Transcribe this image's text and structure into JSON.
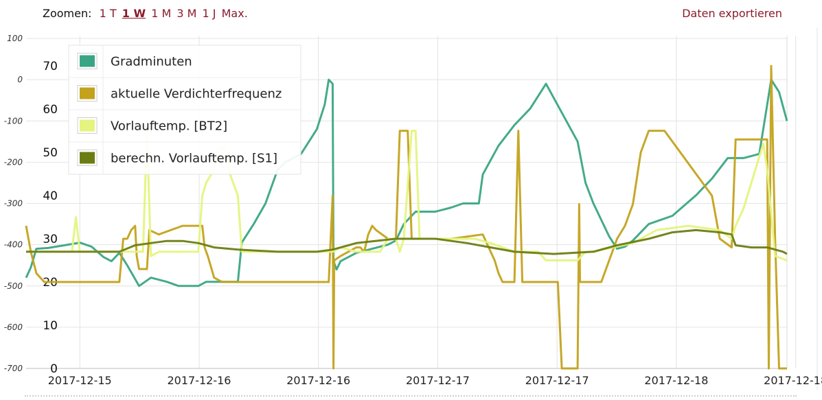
{
  "toolbar": {
    "zoom_label": "Zoomen:",
    "zoom_options": [
      "1 T",
      "1 W",
      "1 M",
      "3 M",
      "1 J",
      "Max."
    ],
    "zoom_active": "1 W",
    "export_label": "Daten exportieren",
    "link_color": "#8b1a2b"
  },
  "chart_data": {
    "type": "line",
    "x": [
      0,
      1,
      2,
      3,
      4,
      5,
      6
    ],
    "x_tick_labels": [
      "2017-12-15",
      "2017-12-16",
      "2017-12-16",
      "2017-12-17",
      "2017-12-17",
      "2017-12-18",
      "2017-12-18"
    ],
    "y_left": {
      "ticks": [
        "100",
        "0",
        "-100",
        "-200",
        "-300",
        "-400",
        "-500",
        "-600",
        "-700"
      ],
      "range": [
        -700,
        100
      ]
    },
    "y_right": {
      "ticks": [
        "70",
        "60",
        "50",
        "40",
        "30",
        "20",
        "10",
        "0"
      ],
      "range": [
        0,
        77
      ]
    },
    "grid": true,
    "legend_position": "top-left",
    "series": [
      {
        "name": "Gradminuten",
        "axis": "left",
        "color": "#3aa584",
        "points": [
          [
            -0.18,
            -480
          ],
          [
            -0.12,
            -455
          ],
          [
            -0.05,
            -410
          ],
          [
            0.1,
            -408
          ],
          [
            0.35,
            -400
          ],
          [
            0.5,
            -395
          ],
          [
            0.65,
            -405
          ],
          [
            0.8,
            -430
          ],
          [
            0.9,
            -440
          ],
          [
            1.0,
            -420
          ],
          [
            1.1,
            -450
          ],
          [
            1.25,
            -500
          ],
          [
            1.4,
            -480
          ],
          [
            1.6,
            -490
          ],
          [
            1.75,
            -500
          ],
          [
            2.0,
            -500
          ],
          [
            2.1,
            -490
          ],
          [
            2.5,
            -490
          ],
          [
            2.55,
            -395
          ],
          [
            2.7,
            -350
          ],
          [
            2.85,
            -300
          ],
          [
            3.0,
            -220
          ],
          [
            3.1,
            -200
          ],
          [
            3.3,
            -180
          ],
          [
            3.5,
            -120
          ],
          [
            3.6,
            -60
          ],
          [
            3.65,
            0
          ],
          [
            3.7,
            -10
          ],
          [
            3.71,
            -440
          ],
          [
            3.75,
            -460
          ],
          [
            3.8,
            -440
          ],
          [
            4.0,
            -420
          ],
          [
            4.2,
            -410
          ],
          [
            4.4,
            -400
          ],
          [
            4.5,
            -390
          ],
          [
            4.6,
            -350
          ],
          [
            4.75,
            -320
          ],
          [
            5.0,
            -320
          ],
          [
            5.2,
            -310
          ],
          [
            5.35,
            -300
          ],
          [
            5.55,
            -300
          ],
          [
            5.6,
            -230
          ],
          [
            5.8,
            -160
          ],
          [
            6.0,
            -110
          ],
          [
            6.2,
            -70
          ],
          [
            6.4,
            -10
          ],
          [
            6.6,
            -80
          ],
          [
            6.8,
            -150
          ],
          [
            6.9,
            -250
          ],
          [
            7.0,
            -300
          ],
          [
            7.2,
            -380
          ],
          [
            7.3,
            -410
          ],
          [
            7.4,
            -405
          ],
          [
            7.5,
            -390
          ],
          [
            7.6,
            -370
          ],
          [
            7.7,
            -350
          ],
          [
            8.0,
            -330
          ],
          [
            8.3,
            -280
          ],
          [
            8.5,
            -240
          ],
          [
            8.7,
            -190
          ],
          [
            8.9,
            -190
          ],
          [
            9.1,
            -180
          ],
          [
            9.25,
            0
          ],
          [
            9.35,
            -30
          ],
          [
            9.45,
            -100
          ]
        ]
      },
      {
        "name": "aktuelle Verdichterfrequenz",
        "axis": "right",
        "color": "#c3a21c",
        "points": [
          [
            -0.18,
            33
          ],
          [
            -0.12,
            27
          ],
          [
            -0.05,
            22
          ],
          [
            0.05,
            20
          ],
          [
            0.5,
            20
          ],
          [
            1.0,
            20
          ],
          [
            1.05,
            30
          ],
          [
            1.1,
            30
          ],
          [
            1.15,
            32
          ],
          [
            1.2,
            33
          ],
          [
            1.22,
            26
          ],
          [
            1.25,
            23
          ],
          [
            1.35,
            23
          ],
          [
            1.38,
            32
          ],
          [
            1.5,
            31
          ],
          [
            1.8,
            33
          ],
          [
            2.05,
            33
          ],
          [
            2.08,
            28
          ],
          [
            2.12,
            26
          ],
          [
            2.2,
            21
          ],
          [
            2.3,
            20
          ],
          [
            2.5,
            20
          ],
          [
            3.0,
            20
          ],
          [
            3.2,
            20
          ],
          [
            3.4,
            20
          ],
          [
            3.6,
            20
          ],
          [
            3.65,
            20
          ],
          [
            3.7,
            40
          ],
          [
            3.71,
            0
          ],
          [
            3.72,
            25
          ],
          [
            3.8,
            26
          ],
          [
            4.0,
            28
          ],
          [
            4.05,
            28
          ],
          [
            4.1,
            27
          ],
          [
            4.15,
            31
          ],
          [
            4.2,
            33
          ],
          [
            4.25,
            32
          ],
          [
            4.4,
            30
          ],
          [
            4.5,
            30
          ],
          [
            4.55,
            55
          ],
          [
            4.65,
            55
          ],
          [
            4.7,
            30
          ],
          [
            4.8,
            30
          ],
          [
            5.0,
            30
          ],
          [
            5.2,
            30
          ],
          [
            5.6,
            31
          ],
          [
            5.7,
            27
          ],
          [
            5.75,
            25
          ],
          [
            5.8,
            22
          ],
          [
            5.85,
            20
          ],
          [
            5.9,
            20
          ],
          [
            6.0,
            20
          ],
          [
            6.05,
            55
          ],
          [
            6.1,
            20
          ],
          [
            6.2,
            20
          ],
          [
            6.3,
            20
          ],
          [
            6.55,
            20
          ],
          [
            6.6,
            0
          ],
          [
            6.8,
            0
          ],
          [
            6.82,
            38
          ],
          [
            6.83,
            20
          ],
          [
            7.0,
            20
          ],
          [
            7.1,
            20
          ],
          [
            7.2,
            25
          ],
          [
            7.3,
            30
          ],
          [
            7.4,
            33
          ],
          [
            7.5,
            38
          ],
          [
            7.6,
            50
          ],
          [
            7.7,
            55
          ],
          [
            7.9,
            55
          ],
          [
            8.1,
            50
          ],
          [
            8.3,
            45
          ],
          [
            8.5,
            40
          ],
          [
            8.6,
            30
          ],
          [
            8.75,
            28
          ],
          [
            8.8,
            53
          ],
          [
            9.0,
            53
          ],
          [
            9.2,
            53
          ],
          [
            9.22,
            0
          ],
          [
            9.25,
            70
          ],
          [
            9.3,
            30
          ],
          [
            9.35,
            0
          ],
          [
            9.45,
            0
          ]
        ]
      },
      {
        "name": "Vorlauftemp. [BT2]",
        "axis": "right",
        "color": "#e4f47e",
        "points": [
          [
            -0.18,
            27
          ],
          [
            0.3,
            27
          ],
          [
            0.4,
            27
          ],
          [
            0.45,
            35
          ],
          [
            0.5,
            27
          ],
          [
            1.0,
            27
          ],
          [
            1.3,
            27
          ],
          [
            1.35,
            55
          ],
          [
            1.4,
            26
          ],
          [
            1.5,
            27
          ],
          [
            1.8,
            27
          ],
          [
            2.0,
            27
          ],
          [
            2.05,
            40
          ],
          [
            2.1,
            43
          ],
          [
            2.2,
            46
          ],
          [
            2.25,
            51
          ],
          [
            2.35,
            51
          ],
          [
            2.4,
            45
          ],
          [
            2.5,
            40
          ],
          [
            2.55,
            27
          ],
          [
            3.0,
            27
          ],
          [
            3.5,
            27
          ],
          [
            3.7,
            27
          ],
          [
            3.8,
            28
          ],
          [
            4.0,
            27
          ],
          [
            4.3,
            27
          ],
          [
            4.4,
            30
          ],
          [
            4.5,
            30
          ],
          [
            4.55,
            27
          ],
          [
            4.6,
            30
          ],
          [
            4.7,
            55
          ],
          [
            4.75,
            55
          ],
          [
            4.8,
            30
          ],
          [
            5.0,
            30
          ],
          [
            5.5,
            30
          ],
          [
            5.7,
            29
          ],
          [
            6.0,
            27
          ],
          [
            6.3,
            27
          ],
          [
            6.4,
            25
          ],
          [
            6.8,
            25
          ],
          [
            6.9,
            27
          ],
          [
            7.0,
            27
          ],
          [
            7.5,
            29
          ],
          [
            7.8,
            32
          ],
          [
            8.2,
            33
          ],
          [
            8.6,
            32
          ],
          [
            8.75,
            30
          ],
          [
            8.8,
            33
          ],
          [
            8.9,
            37
          ],
          [
            9.0,
            43
          ],
          [
            9.1,
            49
          ],
          [
            9.15,
            52
          ],
          [
            9.2,
            46
          ],
          [
            9.3,
            26
          ],
          [
            9.45,
            25
          ]
        ]
      },
      {
        "name": "berechn. Vorlauftemp. [S1]",
        "axis": "right",
        "color": "#6b7d12",
        "points": [
          [
            -0.18,
            27
          ],
          [
            0.5,
            27
          ],
          [
            1.0,
            27
          ],
          [
            1.2,
            28.5
          ],
          [
            1.4,
            29
          ],
          [
            1.6,
            29.5
          ],
          [
            1.8,
            29.5
          ],
          [
            2.0,
            29
          ],
          [
            2.2,
            28
          ],
          [
            2.5,
            27.5
          ],
          [
            3.0,
            27
          ],
          [
            3.5,
            27
          ],
          [
            3.7,
            27.5
          ],
          [
            4.0,
            29
          ],
          [
            4.5,
            30
          ],
          [
            5.0,
            30
          ],
          [
            5.4,
            29
          ],
          [
            5.7,
            28
          ],
          [
            6.0,
            27
          ],
          [
            6.5,
            26.5
          ],
          [
            7.0,
            27
          ],
          [
            7.3,
            28.5
          ],
          [
            7.7,
            30
          ],
          [
            8.0,
            31.5
          ],
          [
            8.3,
            32
          ],
          [
            8.6,
            31.5
          ],
          [
            8.75,
            31
          ],
          [
            8.8,
            28.5
          ],
          [
            9.0,
            28
          ],
          [
            9.2,
            28
          ],
          [
            9.4,
            27
          ],
          [
            9.45,
            26.5
          ]
        ]
      }
    ]
  }
}
